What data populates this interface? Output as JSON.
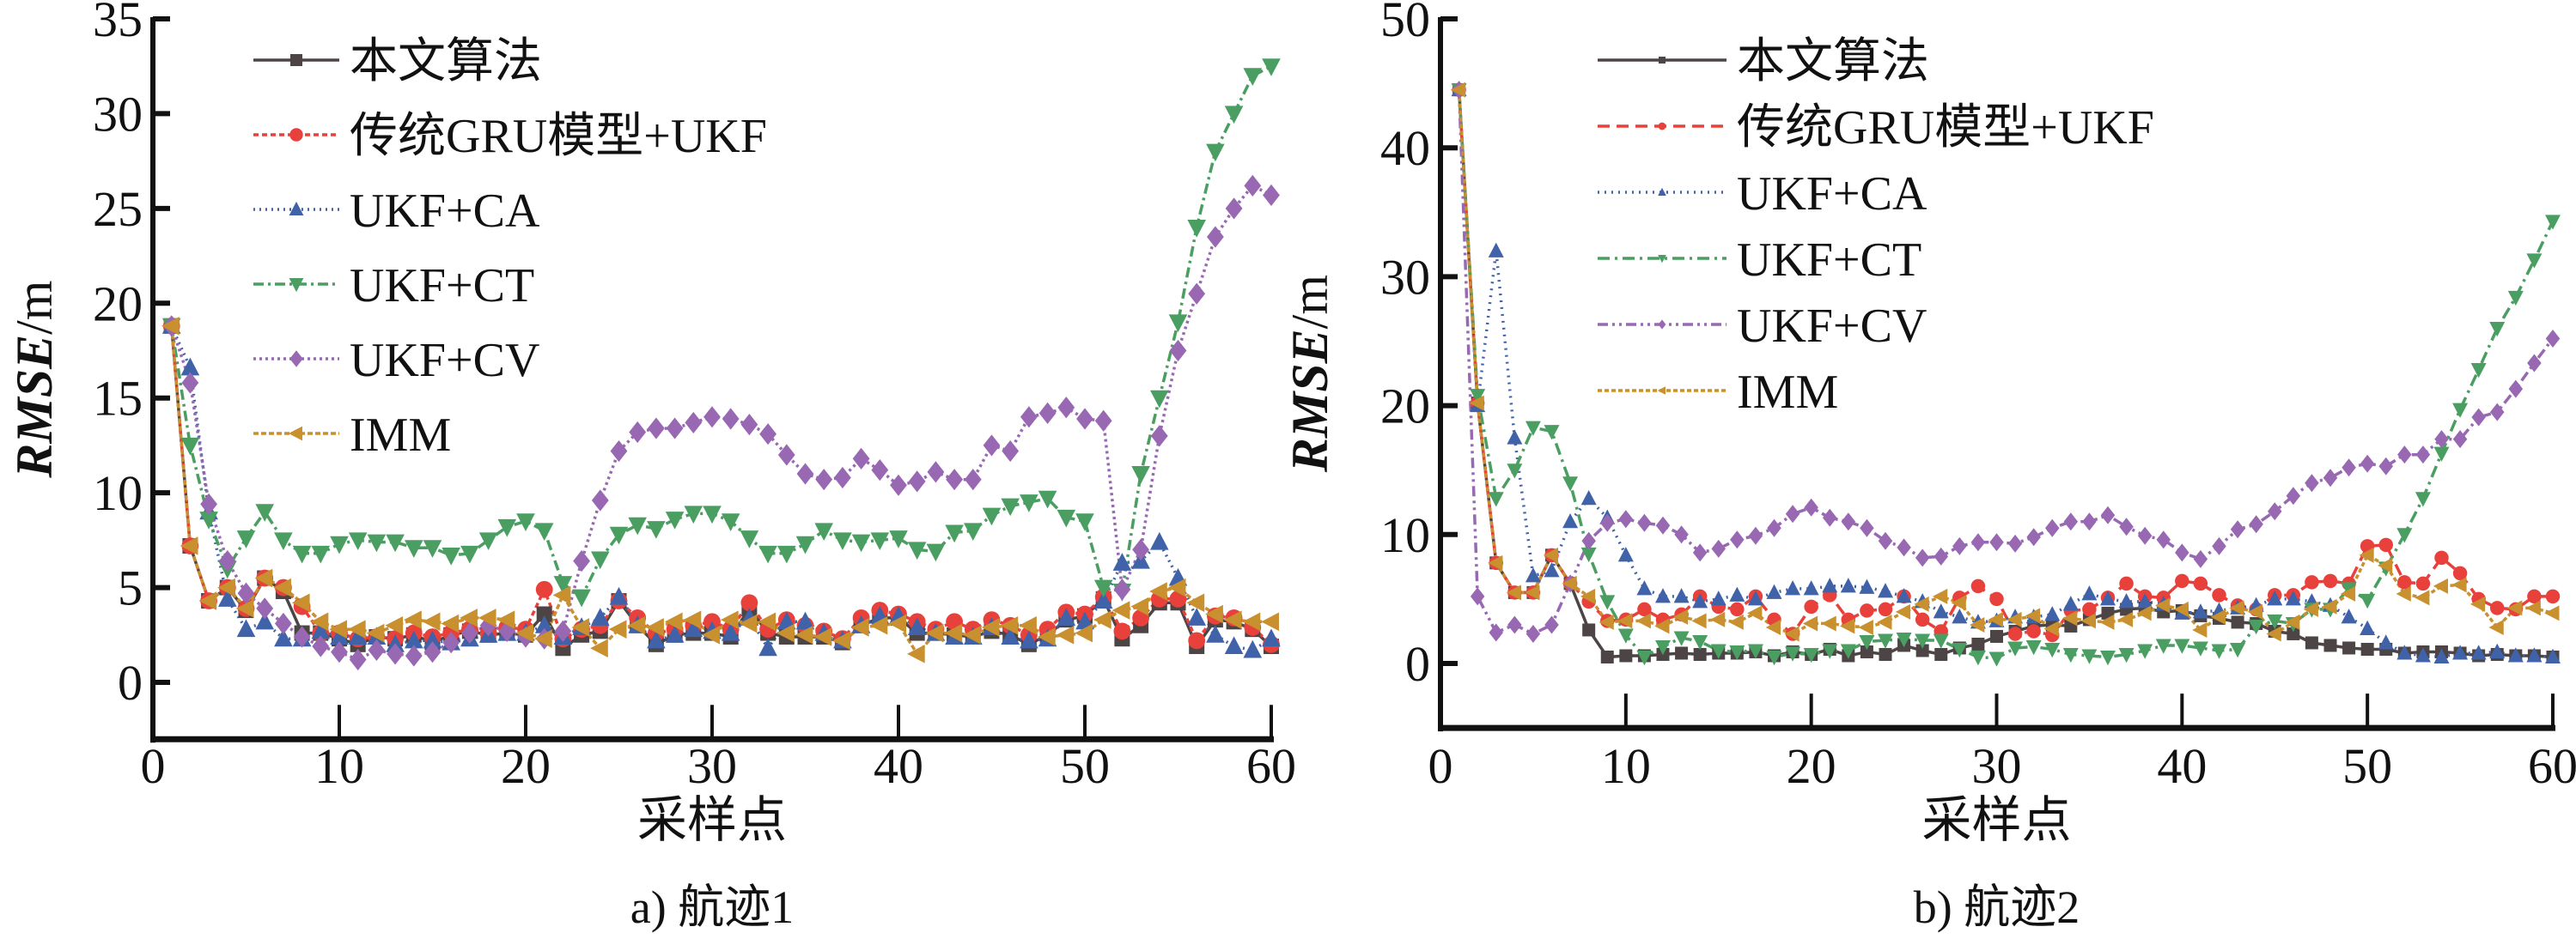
{
  "chart_data": [
    {
      "type": "line",
      "caption": "a) 航迹1",
      "xlabel": "采样点",
      "ylabel_italic": "RMSE",
      "ylabel_unit": "/m",
      "xlim": [
        0,
        60
      ],
      "ylim": [
        -3,
        35
      ],
      "xticks": [
        0,
        10,
        20,
        30,
        40,
        50,
        60
      ],
      "yticks": [
        0,
        5,
        10,
        15,
        20,
        25,
        30,
        35
      ],
      "grid": false,
      "legend_position": "top-left",
      "x": [
        1,
        2,
        3,
        4,
        5,
        6,
        7,
        8,
        9,
        10,
        11,
        12,
        13,
        14,
        15,
        16,
        17,
        18,
        19,
        20,
        21,
        22,
        23,
        24,
        25,
        26,
        27,
        28,
        29,
        30,
        31,
        32,
        33,
        34,
        35,
        36,
        37,
        38,
        39,
        40,
        41,
        42,
        43,
        44,
        45,
        46,
        47,
        48,
        49,
        50,
        51,
        52,
        53,
        54,
        55,
        56,
        57,
        58,
        59,
        60
      ],
      "series": [
        {
          "name": "本文算法",
          "color": "#4d4545",
          "marker": "square",
          "dash": "solid",
          "values": [
            18.8,
            7.2,
            4.3,
            5.0,
            3.8,
            5.5,
            4.8,
            2.6,
            2.6,
            2.3,
            2.0,
            2.4,
            2.3,
            2.5,
            2.1,
            2.5,
            2.7,
            2.5,
            2.6,
            2.5,
            3.6,
            1.8,
            2.5,
            2.7,
            4.3,
            3.0,
            2.0,
            2.5,
            2.6,
            2.6,
            2.4,
            3.9,
            2.6,
            2.4,
            2.4,
            2.4,
            2.1,
            3.0,
            3.4,
            3.4,
            2.6,
            2.6,
            2.5,
            2.4,
            2.7,
            2.5,
            2.0,
            2.5,
            3.3,
            3.5,
            4.4,
            2.3,
            3.0,
            4.2,
            4.2,
            1.9,
            3.3,
            3.2,
            2.8,
            1.9
          ]
        },
        {
          "name": "传统GRU模型+UKF",
          "color": "#e8413c",
          "marker": "circle",
          "dash": "6,4",
          "values": [
            18.8,
            7.2,
            4.3,
            5.0,
            3.9,
            5.5,
            5.0,
            4.0,
            2.6,
            2.6,
            2.3,
            2.4,
            2.3,
            2.6,
            2.4,
            2.6,
            2.8,
            2.6,
            2.9,
            2.8,
            4.9,
            2.3,
            2.8,
            3.0,
            4.3,
            3.4,
            2.6,
            2.8,
            3.0,
            3.2,
            2.8,
            4.2,
            2.8,
            3.3,
            3.0,
            2.7,
            2.3,
            3.4,
            3.8,
            3.6,
            3.2,
            2.8,
            3.2,
            2.8,
            3.3,
            3.0,
            2.5,
            2.8,
            3.7,
            3.6,
            4.5,
            2.7,
            3.4,
            4.4,
            4.4,
            2.2,
            3.5,
            3.4,
            2.9,
            2.0
          ]
        },
        {
          "name": "UKF+CA",
          "color": "#3f62a8",
          "marker": "triangle-up",
          "dash": "2,5",
          "values": [
            18.8,
            16.6,
            9.0,
            4.4,
            2.8,
            3.2,
            2.3,
            2.3,
            2.7,
            2.4,
            2.4,
            2.4,
            2.0,
            2.2,
            2.2,
            2.1,
            2.3,
            2.5,
            2.6,
            2.6,
            3.0,
            2.4,
            2.9,
            3.4,
            4.5,
            3.0,
            2.2,
            2.5,
            2.8,
            2.7,
            2.6,
            3.4,
            1.8,
            3.2,
            3.2,
            2.6,
            2.2,
            3.0,
            3.5,
            3.5,
            2.9,
            2.6,
            2.4,
            2.4,
            2.9,
            2.4,
            2.2,
            2.3,
            3.4,
            3.2,
            4.3,
            6.3,
            6.4,
            7.4,
            5.5,
            3.4,
            2.5,
            1.9,
            1.7,
            2.3
          ]
        },
        {
          "name": "UKF+CT",
          "color": "#4a9e61",
          "marker": "triangle-down",
          "dash": "12,5,3,5",
          "values": [
            18.8,
            12.5,
            8.6,
            6.0,
            7.6,
            9.0,
            7.5,
            6.8,
            6.8,
            7.3,
            7.5,
            7.4,
            7.4,
            7.1,
            7.1,
            6.7,
            6.8,
            7.5,
            8.2,
            8.5,
            8.0,
            5.2,
            4.5,
            6.5,
            7.8,
            8.3,
            8.1,
            8.6,
            8.9,
            8.9,
            8.5,
            7.6,
            6.8,
            6.8,
            7.3,
            8.0,
            7.5,
            7.4,
            7.5,
            7.6,
            7.0,
            6.9,
            7.9,
            8.0,
            8.8,
            9.3,
            9.5,
            9.7,
            8.7,
            8.5,
            5.0,
            4.8,
            11.0,
            15.0,
            19.0,
            24.0,
            28.0,
            30.0,
            32.0,
            32.5
          ]
        },
        {
          "name": "UKF+CV",
          "color": "#9868b3",
          "marker": "diamond",
          "dash": "3,4",
          "values": [
            18.8,
            15.8,
            9.4,
            6.4,
            4.7,
            3.9,
            3.1,
            2.4,
            1.9,
            1.6,
            1.2,
            1.7,
            1.5,
            1.4,
            1.6,
            2.1,
            2.6,
            3.0,
            2.7,
            2.4,
            2.3,
            2.7,
            6.4,
            9.6,
            12.2,
            13.2,
            13.4,
            13.4,
            13.7,
            14.0,
            13.9,
            13.6,
            13.1,
            12.0,
            11.0,
            10.7,
            10.8,
            11.8,
            11.2,
            10.4,
            10.6,
            11.1,
            10.7,
            10.7,
            12.5,
            12.2,
            14.0,
            14.2,
            14.5,
            13.9,
            13.8,
            4.9,
            7.0,
            13.0,
            17.5,
            20.5,
            23.5,
            25.0,
            26.2,
            25.7
          ]
        },
        {
          "name": "IMM",
          "color": "#c8902e",
          "marker": "triangle-left",
          "dash": "6,3",
          "values": [
            18.8,
            7.2,
            4.3,
            5.0,
            3.9,
            5.5,
            5.0,
            4.2,
            3.2,
            2.8,
            2.8,
            2.6,
            3.0,
            3.3,
            3.2,
            3.1,
            3.4,
            3.4,
            3.3,
            2.6,
            2.3,
            4.6,
            2.9,
            1.8,
            2.8,
            3.0,
            2.9,
            3.2,
            3.3,
            2.5,
            3.3,
            3.1,
            3.2,
            2.6,
            2.5,
            2.4,
            2.2,
            2.9,
            3.0,
            3.1,
            1.5,
            2.6,
            2.6,
            2.5,
            2.9,
            3.0,
            3.0,
            2.4,
            2.5,
            2.6,
            3.3,
            3.8,
            4.0,
            4.8,
            5.0,
            4.2,
            3.6,
            3.3,
            3.2,
            3.2
          ]
        }
      ]
    },
    {
      "type": "line",
      "caption": "b) 航迹2",
      "xlabel": "采样点",
      "ylabel_italic": "RMSE",
      "ylabel_unit": "/m",
      "xlim": [
        0,
        60
      ],
      "ylim": [
        -5,
        50
      ],
      "xticks": [
        0,
        10,
        20,
        30,
        40,
        50,
        60
      ],
      "yticks": [
        0,
        10,
        20,
        30,
        40,
        50
      ],
      "grid": false,
      "legend_position": "top-left",
      "x": [
        1,
        2,
        3,
        4,
        5,
        6,
        7,
        8,
        9,
        10,
        11,
        12,
        13,
        14,
        15,
        16,
        17,
        18,
        19,
        20,
        21,
        22,
        23,
        24,
        25,
        26,
        27,
        28,
        29,
        30,
        31,
        32,
        33,
        34,
        35,
        36,
        37,
        38,
        39,
        40,
        41,
        42,
        43,
        44,
        45,
        46,
        47,
        48,
        49,
        50,
        51,
        52,
        53,
        54,
        55,
        56,
        57,
        58,
        59,
        60
      ],
      "series": [
        {
          "name": "本文算法",
          "color": "#4d4545",
          "marker": "square",
          "dash": "solid",
          "values": [
            44.5,
            20.2,
            7.8,
            5.5,
            5.5,
            8.4,
            6.2,
            2.6,
            0.5,
            0.6,
            0.6,
            0.7,
            0.8,
            0.7,
            0.8,
            0.8,
            0.9,
            0.6,
            0.9,
            0.7,
            1.1,
            0.6,
            0.9,
            0.7,
            1.4,
            1.0,
            0.7,
            1.2,
            1.5,
            2.1,
            2.5,
            2.9,
            3.0,
            2.9,
            3.4,
            3.9,
            4.2,
            4.3,
            4.0,
            4.1,
            3.7,
            3.5,
            3.2,
            3.1,
            2.5,
            2.3,
            1.6,
            1.4,
            1.2,
            1.1,
            1.1,
            0.8,
            0.9,
            0.9,
            0.8,
            0.6,
            0.7,
            0.6,
            0.6,
            0.5
          ]
        },
        {
          "name": "传统GRU模型+UKF",
          "color": "#e8413c",
          "marker": "circle",
          "dash": "14,8",
          "values": [
            44.5,
            20.2,
            7.8,
            5.5,
            5.5,
            8.4,
            6.2,
            4.8,
            3.3,
            3.4,
            4.2,
            3.4,
            3.8,
            5.2,
            4.4,
            4.2,
            5.2,
            3.4,
            2.3,
            4.4,
            5.3,
            3.4,
            4.1,
            4.2,
            5.2,
            3.4,
            2.5,
            5.1,
            6.0,
            5.0,
            2.3,
            2.5,
            2.2,
            4.1,
            4.2,
            5.1,
            6.2,
            5.2,
            5.1,
            6.4,
            6.2,
            5.3,
            4.5,
            4.2,
            5.3,
            5.3,
            6.3,
            6.4,
            6.2,
            9.1,
            9.2,
            6.3,
            6.2,
            8.2,
            7.0,
            5.0,
            4.3,
            4.2,
            5.2,
            5.2
          ]
        },
        {
          "name": "UKF+CA",
          "color": "#3f62a8",
          "marker": "triangle-up",
          "dash": "2,6",
          "values": [
            44.5,
            20.0,
            32.0,
            17.5,
            6.8,
            7.2,
            11.0,
            12.8,
            11.3,
            8.4,
            5.8,
            5.2,
            5.2,
            4.8,
            5.0,
            5.3,
            5.0,
            5.5,
            5.8,
            5.8,
            6.0,
            6.0,
            5.9,
            5.6,
            5.2,
            4.8,
            4.0,
            3.6,
            3.2,
            3.3,
            3.6,
            3.6,
            3.8,
            4.6,
            5.4,
            5.0,
            4.8,
            4.8,
            4.6,
            3.9,
            4.0,
            4.1,
            4.3,
            4.5,
            5.0,
            5.0,
            4.8,
            4.5,
            3.6,
            2.7,
            1.6,
            0.8,
            0.6,
            0.5,
            0.8,
            0.8,
            0.9,
            0.6,
            0.6,
            0.5
          ]
        },
        {
          "name": "UKF+CT",
          "color": "#4a9e61",
          "marker": "triangle-down",
          "dash": "14,6,3,6",
          "values": [
            44.5,
            20.8,
            12.8,
            15.0,
            18.3,
            18.0,
            14.0,
            8.5,
            4.8,
            2.2,
            0.5,
            1.3,
            2.0,
            1.7,
            1.0,
            0.9,
            1.0,
            0.5,
            0.8,
            0.7,
            1.0,
            1.0,
            1.7,
            1.8,
            1.9,
            1.8,
            1.8,
            1.1,
            0.5,
            0.4,
            1.2,
            1.3,
            1.1,
            0.7,
            0.6,
            0.5,
            0.7,
            1.0,
            1.4,
            1.4,
            1.2,
            1.0,
            1.1,
            2.9,
            3.3,
            3.1,
            4.2,
            4.2,
            5.8,
            4.9,
            7.4,
            10.0,
            12.8,
            16.3,
            19.7,
            22.8,
            26.0,
            28.4,
            31.3,
            34.3
          ]
        },
        {
          "name": "UKF+CV",
          "color": "#9868b3",
          "marker": "diamond",
          "dash": "12,5,3,5,3,5",
          "values": [
            44.5,
            5.2,
            2.4,
            3.0,
            2.3,
            3.0,
            6.2,
            9.5,
            10.9,
            11.2,
            10.9,
            10.7,
            10.0,
            8.6,
            8.9,
            9.6,
            9.9,
            10.5,
            11.6,
            12.1,
            11.3,
            11.0,
            10.5,
            9.5,
            9.0,
            8.2,
            8.3,
            9.1,
            9.4,
            9.4,
            9.3,
            9.8,
            10.5,
            11.0,
            11.0,
            11.5,
            10.6,
            9.9,
            9.6,
            8.6,
            8.1,
            9.1,
            10.4,
            10.8,
            11.8,
            13.0,
            14.0,
            14.4,
            15.2,
            15.5,
            15.3,
            16.2,
            16.2,
            17.4,
            17.4,
            19.1,
            19.5,
            21.3,
            23.3,
            25.2
          ]
        },
        {
          "name": "IMM",
          "color": "#c8902e",
          "marker": "triangle-left",
          "dash": "5,3",
          "values": [
            44.5,
            20.2,
            7.8,
            5.5,
            5.5,
            8.4,
            6.2,
            5.2,
            3.2,
            3.3,
            3.3,
            2.9,
            3.6,
            3.3,
            3.4,
            3.2,
            3.9,
            2.8,
            2.3,
            3.1,
            3.1,
            2.9,
            2.8,
            3.2,
            4.0,
            4.6,
            5.2,
            4.7,
            3.0,
            3.4,
            3.4,
            3.7,
            2.7,
            3.5,
            3.3,
            3.2,
            3.4,
            3.9,
            4.5,
            4.2,
            2.6,
            3.6,
            4.3,
            4.0,
            2.3,
            3.2,
            4.2,
            4.4,
            5.4,
            8.4,
            7.6,
            5.4,
            5.1,
            6.0,
            6.1,
            4.6,
            2.8,
            4.3,
            4.3,
            3.9
          ]
        }
      ]
    }
  ]
}
